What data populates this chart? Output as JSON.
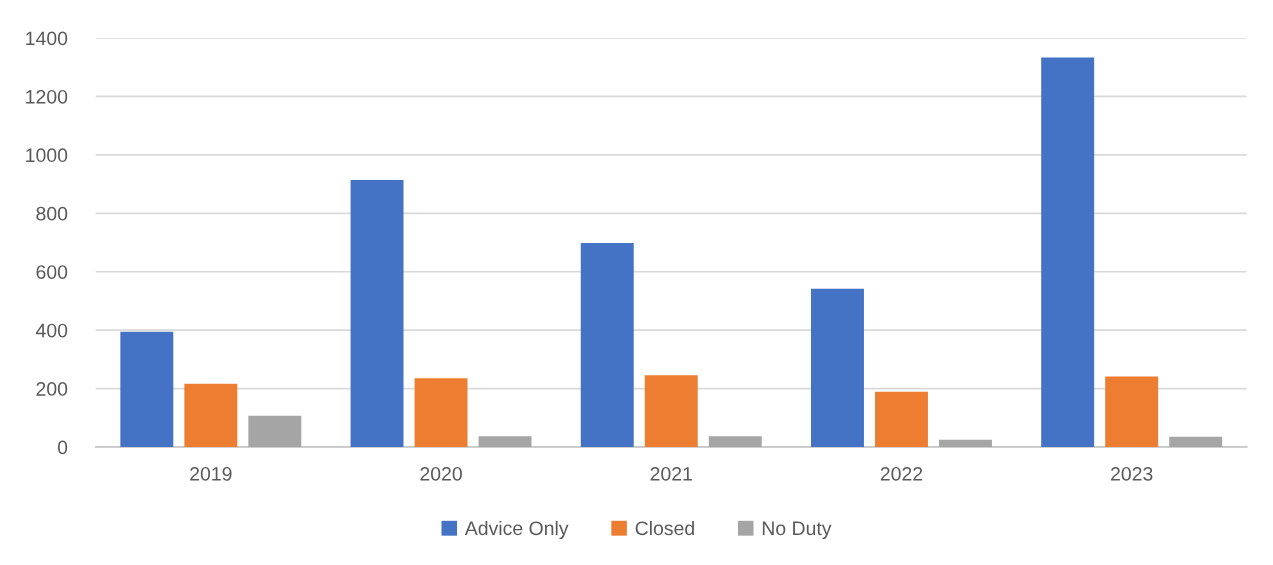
{
  "chart_data": {
    "type": "bar",
    "categories": [
      "2019",
      "2020",
      "2021",
      "2022",
      "2023"
    ],
    "series": [
      {
        "name": "Advice Only",
        "color": "#4472c4",
        "values": [
          395,
          914,
          698,
          542,
          1333
        ]
      },
      {
        "name": "Closed",
        "color": "#ed7d31",
        "values": [
          217,
          235,
          246,
          189,
          241
        ]
      },
      {
        "name": "No Duty",
        "color": "#a5a5a5",
        "values": [
          107,
          37,
          37,
          25,
          35
        ]
      }
    ],
    "ylim": [
      0,
      1400
    ],
    "yticks": [
      0,
      200,
      400,
      600,
      800,
      1000,
      1200,
      1400
    ],
    "grid": "y",
    "legend": "bottom"
  }
}
